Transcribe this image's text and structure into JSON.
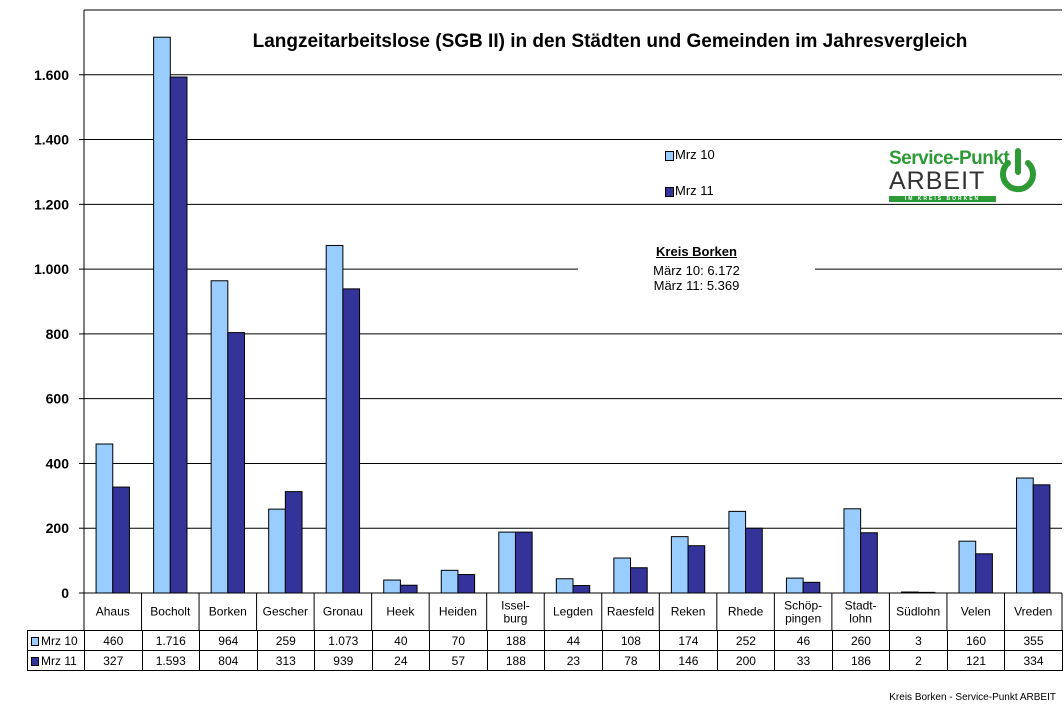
{
  "chart_data": {
    "type": "bar",
    "title": "Langzeitarbeitslose (SGB II) in den Städten und Gemeinden im Jahresvergleich",
    "categories": [
      "Ahaus",
      "Bocholt",
      "Borken",
      "Gescher",
      "Gronau",
      "Heek",
      "Heiden",
      "Issel-\nburg",
      "Legden",
      "Raesfeld",
      "Reken",
      "Rhede",
      "Schöp-\npingen",
      "Stadt-\nlohn",
      "Südlohn",
      "Velen",
      "Vreden"
    ],
    "series": [
      {
        "name": "Mrz 10",
        "color": "#99ccff",
        "values": [
          460,
          1716,
          964,
          259,
          1073,
          40,
          70,
          188,
          44,
          108,
          174,
          252,
          46,
          260,
          3,
          160,
          355
        ],
        "labels": [
          "460",
          "1.716",
          "964",
          "259",
          "1.073",
          "40",
          "70",
          "188",
          "44",
          "108",
          "174",
          "252",
          "46",
          "260",
          "3",
          "160",
          "355"
        ]
      },
      {
        "name": "Mrz 11",
        "color": "#333399",
        "values": [
          327,
          1593,
          804,
          313,
          939,
          24,
          57,
          188,
          23,
          78,
          146,
          200,
          33,
          186,
          2,
          121,
          334
        ],
        "labels": [
          "327",
          "1.593",
          "804",
          "313",
          "939",
          "24",
          "57",
          "188",
          "23",
          "78",
          "146",
          "200",
          "33",
          "186",
          "2",
          "121",
          "334"
        ]
      }
    ],
    "ylim": [
      0,
      1800
    ],
    "yticks": [
      0,
      200,
      400,
      600,
      800,
      1000,
      1200,
      1400,
      1600
    ],
    "ytick_labels": [
      "0",
      "200",
      "400",
      "600",
      "800",
      "1.000",
      "1.200",
      "1.400",
      "1.600"
    ],
    "grid": true,
    "legend": "upper-right"
  },
  "info": {
    "heading": "Kreis Borken",
    "line1": "März 10: 6.172",
    "line2": "März 11: 5.369"
  },
  "logo": {
    "line1": "Service-Punkt",
    "line2": "ARBEIT",
    "line3": "IM KREIS BORKEN"
  },
  "footer": "Kreis Borken - Service-Punkt ARBEIT"
}
